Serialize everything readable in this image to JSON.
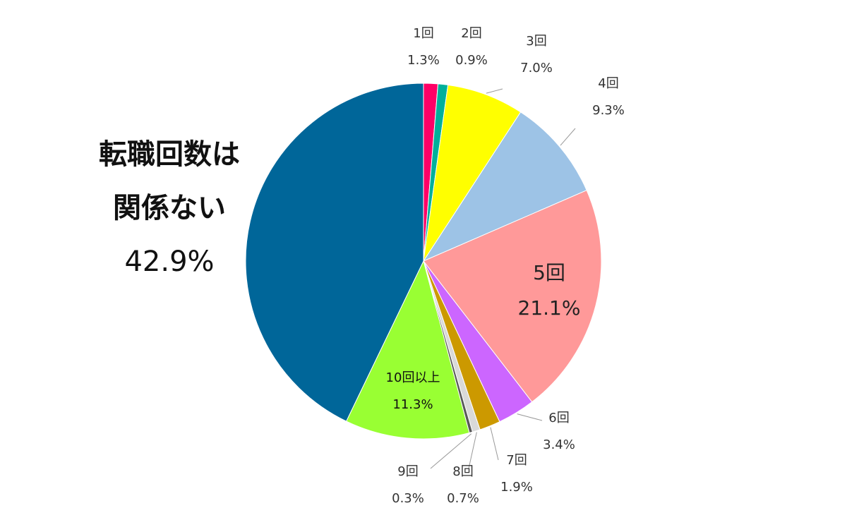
{
  "chart_data": {
    "type": "pie",
    "categories": [
      "1回",
      "2回",
      "3回",
      "4回",
      "5回",
      "6回",
      "7回",
      "8回",
      "9回",
      "10回以上",
      "転職回数は関係ない"
    ],
    "values": [
      1.3,
      0.9,
      7.0,
      9.3,
      21.1,
      3.4,
      1.9,
      0.7,
      0.3,
      11.3,
      42.9
    ],
    "value_labels": [
      "1.3%",
      "0.9%",
      "7.0%",
      "9.3%",
      "21.1%",
      "3.4%",
      "1.9%",
      "0.7%",
      "0.3%",
      "11.3%",
      "42.9%"
    ],
    "colors": [
      "#ff0066",
      "#00b09a",
      "#ffff00",
      "#9dc3e6",
      "#ff9999",
      "#cc66ff",
      "#cc9900",
      "#d9d9d9",
      "#595959",
      "#99ff33",
      "#006699"
    ]
  }
}
